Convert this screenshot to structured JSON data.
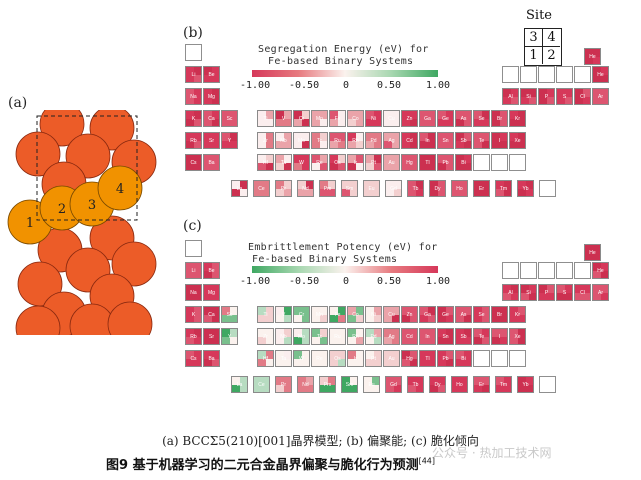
{
  "panels": {
    "a": {
      "letter": "(a)",
      "sites": [
        "1",
        "2",
        "3",
        "4"
      ]
    },
    "b": {
      "letter": "(b)",
      "legend_title_line1": "Segregation Energy (eV) for",
      "legend_title_line2": "Fe-based Binary Systems",
      "ticks": [
        "-1.00",
        "-0.50",
        "0",
        "0.50",
        "1.00"
      ]
    },
    "c": {
      "letter": "(c)",
      "legend_title_line1": "Embrittlement Potency (eV) for",
      "legend_title_line2": "Fe-based Binary Systems",
      "ticks": [
        "-1.00",
        "-0.50",
        "0",
        "0.50",
        "1.00"
      ]
    }
  },
  "site_key": {
    "title": "Site",
    "grid": [
      "3",
      "4",
      "1",
      "2"
    ]
  },
  "colors": {
    "atom": "#ec5c28",
    "highlight_atom": "#f19200",
    "neg": "#d93a55",
    "pos": "#3fa862",
    "zero": "#fafafa"
  },
  "caption": {
    "line1": "(a) BCCΣ5(210)[001]晶界模型; (b) 偏聚能; (c) 脆化倾向",
    "line2": "图9  基于机器学习的二元合金晶界偏聚与脆化行为预测",
    "ref": "[44]"
  },
  "watermark": "公众号 · 热加工技术网",
  "elements_b": {
    "row1": [
      "Li",
      "Be",
      "",
      "",
      "",
      "",
      "",
      "",
      "",
      "",
      "",
      "",
      "B",
      "C",
      "N",
      "O",
      "F",
      "He"
    ],
    "row2": [
      "Na",
      "Mg",
      "",
      "",
      "",
      "",
      "",
      "",
      "",
      "",
      "",
      "",
      "Al",
      "Si",
      "P",
      "S",
      "Cl",
      "Ar"
    ],
    "row3": [
      "K",
      "Ca",
      "Sc",
      "Ti",
      "V",
      "Cr",
      "Mn",
      "Fe",
      "Co",
      "Ni",
      "Cu",
      "Zn",
      "Ga",
      "Ge",
      "As",
      "Se",
      "Br",
      "Kr"
    ],
    "row4": [
      "Rb",
      "Sr",
      "Y",
      "Zr",
      "Nb",
      "Mo",
      "Tc",
      "Ru",
      "Rh",
      "Pd",
      "Ag",
      "Cd",
      "In",
      "Sn",
      "Sb",
      "Te",
      "I",
      "Xe"
    ],
    "row5": [
      "Cs",
      "Ba",
      "",
      "Hf",
      "Ta",
      "W",
      "Re",
      "Os",
      "Ir",
      "Pt",
      "Au",
      "Hg",
      "Tl",
      "Pb",
      "Bi",
      "",
      "",
      ""
    ],
    "row6": [
      "La",
      "Ce",
      "Pr",
      "Nd",
      "Pm",
      "Sm",
      "Eu",
      "Gd",
      "Tb",
      "Dy",
      "Ho",
      "Er",
      "Tm",
      "Yb",
      "Lu"
    ]
  }
}
